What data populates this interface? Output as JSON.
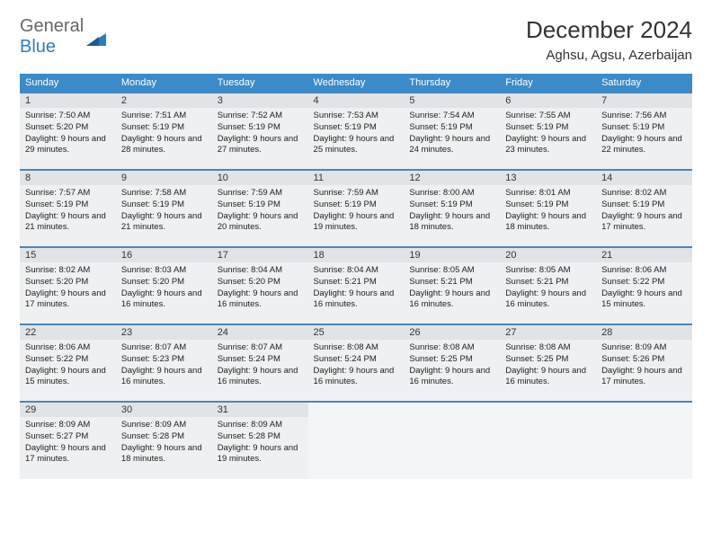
{
  "logo": {
    "text1": "General",
    "text2": "Blue"
  },
  "title": "December 2024",
  "location": "Aghsu, Agsu, Azerbaijan",
  "colors": {
    "header_bg": "#3a8bca",
    "header_text": "#ffffff",
    "row_border": "#4a86b8",
    "cell_bg": "#eef0f1",
    "daynum_bg": "#e1e4e6",
    "logo_blue": "#2d7bc0"
  },
  "weekdays": [
    "Sunday",
    "Monday",
    "Tuesday",
    "Wednesday",
    "Thursday",
    "Friday",
    "Saturday"
  ],
  "weeks": [
    [
      {
        "day": "1",
        "sunrise": "7:50 AM",
        "sunset": "5:20 PM",
        "daylight": "9 hours and 29 minutes."
      },
      {
        "day": "2",
        "sunrise": "7:51 AM",
        "sunset": "5:19 PM",
        "daylight": "9 hours and 28 minutes."
      },
      {
        "day": "3",
        "sunrise": "7:52 AM",
        "sunset": "5:19 PM",
        "daylight": "9 hours and 27 minutes."
      },
      {
        "day": "4",
        "sunrise": "7:53 AM",
        "sunset": "5:19 PM",
        "daylight": "9 hours and 25 minutes."
      },
      {
        "day": "5",
        "sunrise": "7:54 AM",
        "sunset": "5:19 PM",
        "daylight": "9 hours and 24 minutes."
      },
      {
        "day": "6",
        "sunrise": "7:55 AM",
        "sunset": "5:19 PM",
        "daylight": "9 hours and 23 minutes."
      },
      {
        "day": "7",
        "sunrise": "7:56 AM",
        "sunset": "5:19 PM",
        "daylight": "9 hours and 22 minutes."
      }
    ],
    [
      {
        "day": "8",
        "sunrise": "7:57 AM",
        "sunset": "5:19 PM",
        "daylight": "9 hours and 21 minutes."
      },
      {
        "day": "9",
        "sunrise": "7:58 AM",
        "sunset": "5:19 PM",
        "daylight": "9 hours and 21 minutes."
      },
      {
        "day": "10",
        "sunrise": "7:59 AM",
        "sunset": "5:19 PM",
        "daylight": "9 hours and 20 minutes."
      },
      {
        "day": "11",
        "sunrise": "7:59 AM",
        "sunset": "5:19 PM",
        "daylight": "9 hours and 19 minutes."
      },
      {
        "day": "12",
        "sunrise": "8:00 AM",
        "sunset": "5:19 PM",
        "daylight": "9 hours and 18 minutes."
      },
      {
        "day": "13",
        "sunrise": "8:01 AM",
        "sunset": "5:19 PM",
        "daylight": "9 hours and 18 minutes."
      },
      {
        "day": "14",
        "sunrise": "8:02 AM",
        "sunset": "5:19 PM",
        "daylight": "9 hours and 17 minutes."
      }
    ],
    [
      {
        "day": "15",
        "sunrise": "8:02 AM",
        "sunset": "5:20 PM",
        "daylight": "9 hours and 17 minutes."
      },
      {
        "day": "16",
        "sunrise": "8:03 AM",
        "sunset": "5:20 PM",
        "daylight": "9 hours and 16 minutes."
      },
      {
        "day": "17",
        "sunrise": "8:04 AM",
        "sunset": "5:20 PM",
        "daylight": "9 hours and 16 minutes."
      },
      {
        "day": "18",
        "sunrise": "8:04 AM",
        "sunset": "5:21 PM",
        "daylight": "9 hours and 16 minutes."
      },
      {
        "day": "19",
        "sunrise": "8:05 AM",
        "sunset": "5:21 PM",
        "daylight": "9 hours and 16 minutes."
      },
      {
        "day": "20",
        "sunrise": "8:05 AM",
        "sunset": "5:21 PM",
        "daylight": "9 hours and 16 minutes."
      },
      {
        "day": "21",
        "sunrise": "8:06 AM",
        "sunset": "5:22 PM",
        "daylight": "9 hours and 15 minutes."
      }
    ],
    [
      {
        "day": "22",
        "sunrise": "8:06 AM",
        "sunset": "5:22 PM",
        "daylight": "9 hours and 15 minutes."
      },
      {
        "day": "23",
        "sunrise": "8:07 AM",
        "sunset": "5:23 PM",
        "daylight": "9 hours and 16 minutes."
      },
      {
        "day": "24",
        "sunrise": "8:07 AM",
        "sunset": "5:24 PM",
        "daylight": "9 hours and 16 minutes."
      },
      {
        "day": "25",
        "sunrise": "8:08 AM",
        "sunset": "5:24 PM",
        "daylight": "9 hours and 16 minutes."
      },
      {
        "day": "26",
        "sunrise": "8:08 AM",
        "sunset": "5:25 PM",
        "daylight": "9 hours and 16 minutes."
      },
      {
        "day": "27",
        "sunrise": "8:08 AM",
        "sunset": "5:25 PM",
        "daylight": "9 hours and 16 minutes."
      },
      {
        "day": "28",
        "sunrise": "8:09 AM",
        "sunset": "5:26 PM",
        "daylight": "9 hours and 17 minutes."
      }
    ],
    [
      {
        "day": "29",
        "sunrise": "8:09 AM",
        "sunset": "5:27 PM",
        "daylight": "9 hours and 17 minutes."
      },
      {
        "day": "30",
        "sunrise": "8:09 AM",
        "sunset": "5:28 PM",
        "daylight": "9 hours and 18 minutes."
      },
      {
        "day": "31",
        "sunrise": "8:09 AM",
        "sunset": "5:28 PM",
        "daylight": "9 hours and 19 minutes."
      },
      null,
      null,
      null,
      null
    ]
  ],
  "labels": {
    "sunrise": "Sunrise:",
    "sunset": "Sunset:",
    "daylight": "Daylight:"
  }
}
